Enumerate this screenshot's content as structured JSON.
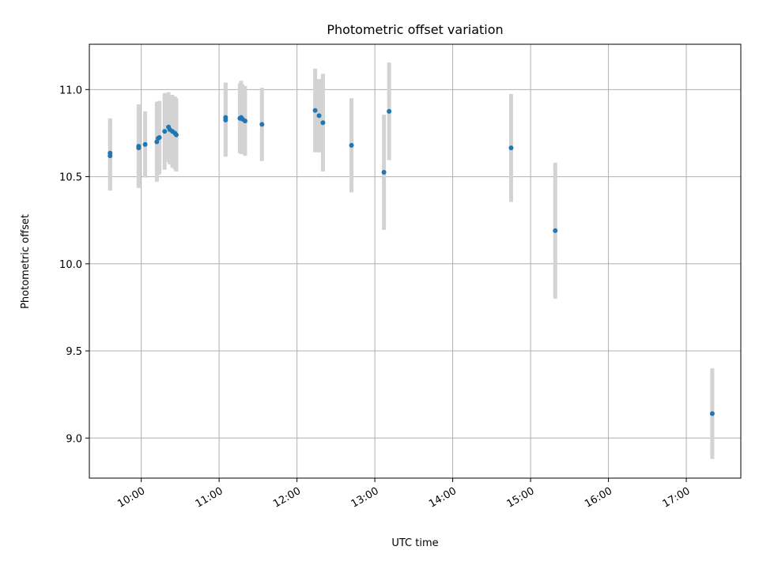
{
  "chart_data": {
    "type": "scatter",
    "title": "Photometric offset variation",
    "xlabel": "UTC time",
    "ylabel": "Photometric offset",
    "x_ticks": [
      "10:00",
      "11:00",
      "12:00",
      "13:00",
      "14:00",
      "15:00",
      "16:00",
      "17:00"
    ],
    "y_ticks": [
      "9.0",
      "9.5",
      "10.0",
      "10.5",
      "11.0"
    ],
    "xlim": [
      "09:20",
      "17:42"
    ],
    "ylim": [
      8.77,
      11.26
    ],
    "grid": true,
    "colors": {
      "points": "#1f77b4",
      "errorbars": "#d3d3d3",
      "grid": "#b0b0b0"
    },
    "series": [
      {
        "points": [
          {
            "x": "09:36",
            "y": 10.62,
            "err": 0.2
          },
          {
            "x": "09:36",
            "y": 10.635,
            "err": 0.2
          },
          {
            "x": "09:58",
            "y": 10.675,
            "err": 0.24
          },
          {
            "x": "09:58",
            "y": 10.665,
            "err": 0.22
          },
          {
            "x": "10:03",
            "y": 10.685,
            "err": 0.19
          },
          {
            "x": "10:12",
            "y": 10.7,
            "err": 0.23
          },
          {
            "x": "10:13",
            "y": 10.72,
            "err": 0.21
          },
          {
            "x": "10:14",
            "y": 10.725,
            "err": 0.21
          },
          {
            "x": "10:18",
            "y": 10.76,
            "err": 0.22
          },
          {
            "x": "10:21",
            "y": 10.785,
            "err": 0.2
          },
          {
            "x": "10:22",
            "y": 10.77,
            "err": 0.2
          },
          {
            "x": "10:24",
            "y": 10.76,
            "err": 0.21
          },
          {
            "x": "10:26",
            "y": 10.75,
            "err": 0.21
          },
          {
            "x": "10:27",
            "y": 10.74,
            "err": 0.21
          },
          {
            "x": "11:05",
            "y": 10.825,
            "err": 0.21
          },
          {
            "x": "11:05",
            "y": 10.84,
            "err": 0.2
          },
          {
            "x": "11:16",
            "y": 10.835,
            "err": 0.2
          },
          {
            "x": "11:17",
            "y": 10.84,
            "err": 0.21
          },
          {
            "x": "11:18",
            "y": 10.83,
            "err": 0.2
          },
          {
            "x": "11:20",
            "y": 10.82,
            "err": 0.2
          },
          {
            "x": "11:33",
            "y": 10.8,
            "err": 0.21
          },
          {
            "x": "12:14",
            "y": 10.88,
            "err": 0.24
          },
          {
            "x": "12:17",
            "y": 10.85,
            "err": 0.21
          },
          {
            "x": "12:20",
            "y": 10.81,
            "err": 0.28
          },
          {
            "x": "12:42",
            "y": 10.68,
            "err": 0.27
          },
          {
            "x": "13:07",
            "y": 10.525,
            "err": 0.33
          },
          {
            "x": "13:11",
            "y": 10.875,
            "err": 0.28
          },
          {
            "x": "14:45",
            "y": 10.665,
            "err": 0.31
          },
          {
            "x": "15:19",
            "y": 10.19,
            "err": 0.39
          },
          {
            "x": "17:20",
            "y": 9.14,
            "err": 0.26
          }
        ]
      }
    ]
  }
}
